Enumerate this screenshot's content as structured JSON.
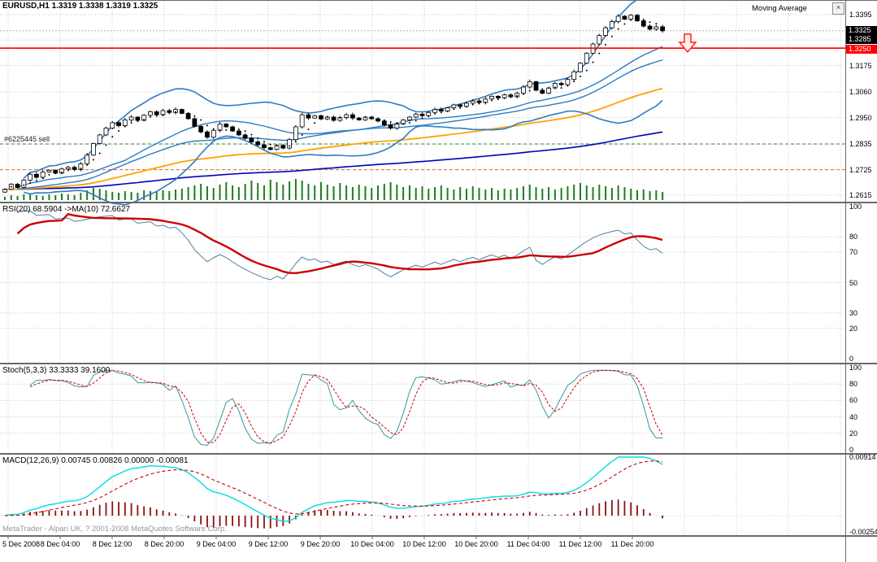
{
  "header": {
    "symbol_info": "EURUSD,H1 1.3319 1.3338 1.3319 1.3325"
  },
  "indicator_toolbar": {
    "label": "Moving Average",
    "close_glyph": "×"
  },
  "watermark": "MetaTrader - Alpari UK, ? 2001-2008 MetaQuotes Software Corp.",
  "colors": {
    "grid": "#c9c9c9",
    "bull": "#ffffff",
    "bear": "#000000",
    "candle_outline": "#000000",
    "bollinger": "#2e7cc3",
    "ma_dotted": "#000000",
    "ma_blue": "#2e7cc3",
    "ma_orange": "#ffa300",
    "ma_navy": "#0000bb",
    "volume": "#1e7d1e",
    "bid_line": "#b5b5b5",
    "hline_red": "#ff0000",
    "order_green": "#2e8b2e",
    "stop_orange": "#e06a30",
    "rsi_line": "#4f81a0",
    "rsi_ma": "#cc0000",
    "stoch_main": "#3a95a0",
    "stoch_signal": "#cc0000",
    "macd_main": "#00dede",
    "macd_signal": "#cc0000",
    "macd_hist": "#8b1010",
    "arrow": "#ff2020"
  },
  "chart_data": [
    {
      "type": "candlestick",
      "title": "EURUSD,H1",
      "open_value": 1.3319,
      "high_value": 1.3338,
      "low_value": 1.3319,
      "close_value": 1.3325,
      "x_labels": [
        "5 Dec 2008",
        "8 Dec 04:00",
        "8 Dec 12:00",
        "8 Dec 20:00",
        "9 Dec 04:00",
        "9 Dec 12:00",
        "9 Dec 20:00",
        "10 Dec 04:00",
        "10 Dec 12:00",
        "10 Dec 20:00",
        "11 Dec 04:00",
        "11 Dec 12:00",
        "11 Dec 20:00"
      ],
      "ylim": [
        1.259,
        1.3458
      ],
      "price_ticks": [
        "1.3395",
        "1.3175",
        "1.3060",
        "1.2950",
        "1.2835",
        "1.2725",
        "1.2615"
      ],
      "grid_prices": [
        1.3395,
        1.3285,
        1.3175,
        1.306,
        1.295,
        1.2835,
        1.2725,
        1.2615
      ],
      "price_boxes": {
        "bid": "1.3325",
        "ask": "1.3285",
        "line": "1.3250"
      },
      "closes": [
        1.264,
        1.2662,
        1.2648,
        1.268,
        1.2705,
        1.2692,
        1.2715,
        1.2722,
        1.271,
        1.2728,
        1.2735,
        1.2726,
        1.275,
        1.2788,
        1.2838,
        1.2875,
        1.2905,
        1.2928,
        1.2915,
        1.294,
        1.2952,
        1.2938,
        1.296,
        1.2975,
        1.2962,
        1.298,
        1.2972,
        1.2985,
        1.2968,
        1.2945,
        1.2912,
        1.2888,
        1.2865,
        1.2895,
        1.2922,
        1.291,
        1.2892,
        1.2875,
        1.286,
        1.2845,
        1.2832,
        1.282,
        1.2812,
        1.283,
        1.2818,
        1.2855,
        1.291,
        1.2962,
        1.2948,
        1.2958,
        1.2944,
        1.2952,
        1.2938,
        1.295,
        1.2962,
        1.2948,
        1.294,
        1.2952,
        1.2945,
        1.2935,
        1.2918,
        1.2905,
        1.2922,
        1.294,
        1.2952,
        1.2965,
        1.2958,
        1.2972,
        1.2985,
        1.2978,
        1.2992,
        1.3005,
        1.2998,
        1.3012,
        1.3022,
        1.3015,
        1.303,
        1.3042,
        1.3035,
        1.3048,
        1.304,
        1.3055,
        1.3082,
        1.3105,
        1.3068,
        1.3055,
        1.3078,
        1.3098,
        1.3092,
        1.3115,
        1.3148,
        1.3185,
        1.3228,
        1.3268,
        1.3305,
        1.3338,
        1.3365,
        1.3388,
        1.3375,
        1.3392,
        1.3368,
        1.3345,
        1.3332,
        1.3342,
        1.3325
      ],
      "volumes": [
        4,
        6,
        5,
        7,
        8,
        6,
        5,
        7,
        6,
        8,
        7,
        6,
        9,
        12,
        15,
        14,
        12,
        10,
        9,
        11,
        10,
        9,
        12,
        11,
        10,
        12,
        11,
        13,
        14,
        16,
        18,
        20,
        17,
        15,
        19,
        22,
        18,
        16,
        20,
        24,
        21,
        18,
        25,
        22,
        19,
        23,
        26,
        24,
        20,
        18,
        22,
        19,
        17,
        21,
        18,
        16,
        19,
        17,
        15,
        18,
        20,
        22,
        19,
        16,
        18,
        15,
        17,
        14,
        16,
        18,
        15,
        13,
        16,
        14,
        17,
        15,
        13,
        15,
        12,
        14,
        13,
        15,
        17,
        19,
        16,
        14,
        16,
        13,
        15,
        17,
        19,
        21,
        18,
        16,
        19,
        17,
        15,
        18,
        16,
        14,
        12,
        13,
        11,
        12,
        10
      ],
      "overlays": [
        "Bollinger Bands(20,2)",
        "MA(5) dotted",
        "EMA(34)",
        "EMA(72)",
        "EMA(200)"
      ],
      "hlines": [
        {
          "price": 1.325,
          "label": "1.3250",
          "style": "solid",
          "color_key": "hline_red"
        },
        {
          "price": 1.2836,
          "label": "#6225445 sell",
          "style": "dashed",
          "color_key": "order_green"
        },
        {
          "price": 1.2725,
          "label": "",
          "style": "dashed",
          "color_key": "stop_orange"
        },
        {
          "price": 1.3325,
          "label": "",
          "style": "dashed",
          "color_key": "bid_line"
        }
      ],
      "annotation": {
        "shape": "down-arrow",
        "x": 846,
        "y": 42
      }
    },
    {
      "type": "line",
      "name": "RSI",
      "label": "RSI(20) 68.5904 ->MA(10) 72.6627",
      "params": {
        "period": 20,
        "ma_period": 10
      },
      "current": 68.5904,
      "ma_current": 72.6627,
      "ylim": [
        0,
        100
      ],
      "ticks": [
        100,
        80,
        70,
        50,
        30,
        20,
        0
      ]
    },
    {
      "type": "line",
      "name": "Stochastic",
      "label": "Stoch(5,3,3) 33.3333 39.1600",
      "params": {
        "k": 5,
        "d": 3,
        "slowing": 3
      },
      "current": 33.3333,
      "signal_current": 39.16,
      "ylim": [
        0,
        100
      ],
      "ticks": [
        100,
        80,
        60,
        40,
        20,
        0
      ]
    },
    {
      "type": "line",
      "name": "MACD",
      "label": "MACD(12,26,9) 0.00745 0.00826 0.00000 -0.00081",
      "params": {
        "fast": 12,
        "slow": 26,
        "signal": 9
      },
      "values": [
        0.00745,
        0.00826,
        0.0,
        -0.00081
      ],
      "ylim": [
        -0.00254,
        0.00914
      ],
      "ticks": [
        "0.00914",
        "-0.00254"
      ]
    }
  ]
}
